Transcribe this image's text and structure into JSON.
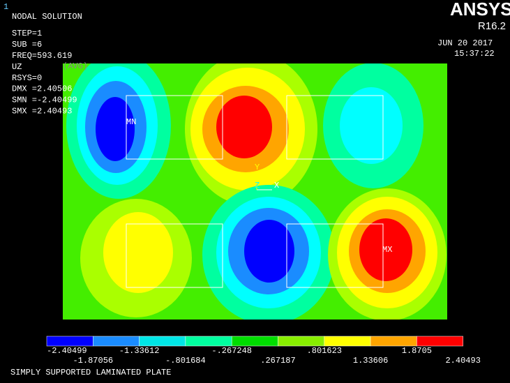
{
  "window_id": "1",
  "info": {
    "title": "NODAL SOLUTION",
    "lines": [
      "STEP=1",
      "SUB =6",
      "FREQ=593.619",
      "UZ",
      "RSYS=0",
      "DMX =2.40506",
      "SMN =-2.40499",
      "SMX =2.40493"
    ],
    "avg": "(AVG)"
  },
  "brand": {
    "name": "ANSYS",
    "version": "R16.2",
    "date": "JUN 20 2017",
    "time": "15:37:22"
  },
  "plot": {
    "min_label": "MN",
    "max_label": "MX",
    "axes": [
      "Y",
      "Z",
      "X"
    ]
  },
  "legend": {
    "labels": [
      "-2.40499",
      "-1.87056",
      "-1.33612",
      "-.801684",
      "-.267248",
      ".267187",
      ".801623",
      "1.33606",
      "1.8705",
      "2.40493"
    ]
  },
  "footer": "SIMPLY SUPPORTED LAMINATED PLATE"
}
